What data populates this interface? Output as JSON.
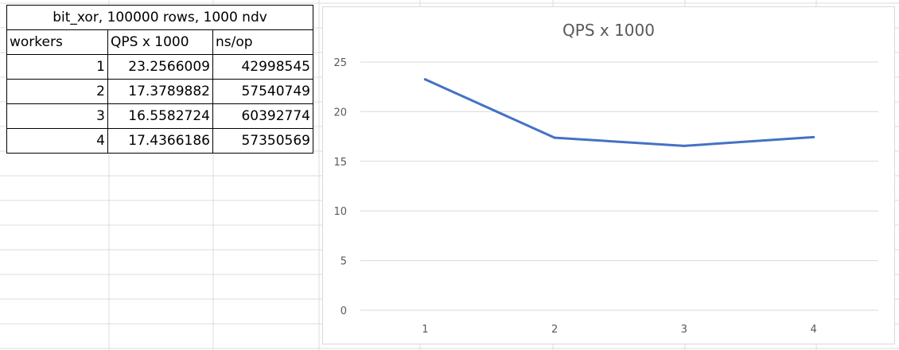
{
  "table": {
    "title": "bit_xor, 100000 rows, 1000 ndv",
    "headers": [
      "workers",
      "QPS x 1000",
      "ns/op"
    ],
    "rows": [
      [
        "1",
        "23.2566009",
        "42998545"
      ],
      [
        "2",
        "17.3789882",
        "57540749"
      ],
      [
        "3",
        "16.5582724",
        "60392774"
      ],
      [
        "4",
        "17.4366186",
        "57350569"
      ]
    ]
  },
  "chart_data": {
    "type": "line",
    "title": "QPS x 1000",
    "categories": [
      "1",
      "2",
      "3",
      "4"
    ],
    "series": [
      {
        "values": [
          23.2566009,
          17.3789882,
          16.5582724,
          17.4366186
        ]
      }
    ],
    "ylim": [
      0,
      25
    ],
    "yticks": [
      "0",
      "5",
      "10",
      "15",
      "20",
      "25"
    ],
    "grid": true,
    "line_color": "#4472C4"
  }
}
